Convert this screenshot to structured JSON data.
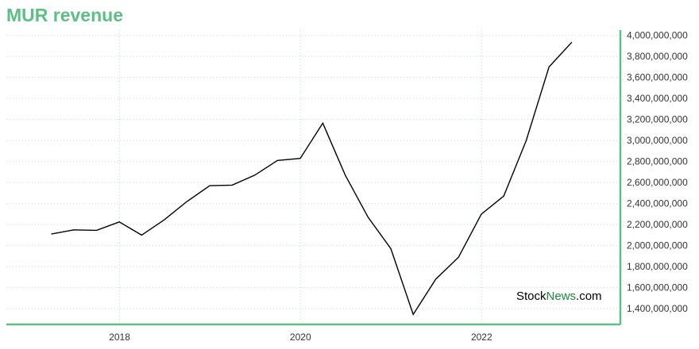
{
  "title": "MUR revenue",
  "watermark": {
    "part1": "Stock",
    "part2": "News",
    "part3": ".com"
  },
  "colors": {
    "accent": "#5cbf85",
    "line": "#000000"
  },
  "chart_data": {
    "type": "line",
    "title": "MUR revenue",
    "xlabel": "",
    "ylabel": "",
    "x_ticks": [
      "2018",
      "2020",
      "2022"
    ],
    "y_ticks": [
      1400000000,
      1600000000,
      1800000000,
      2000000000,
      2200000000,
      2400000000,
      2600000000,
      2800000000,
      3000000000,
      3200000000,
      3400000000,
      3600000000,
      3800000000,
      4000000000
    ],
    "y_tick_labels": [
      "1,400,000,000",
      "1,600,000,000",
      "1,800,000,000",
      "2,000,000,000",
      "2,200,000,000",
      "2,400,000,000",
      "2,600,000,000",
      "2,800,000,000",
      "3,000,000,000",
      "3,200,000,000",
      "3,400,000,000",
      "3,600,000,000",
      "3,800,000,000",
      "4,000,000,000"
    ],
    "ylim": [
      1250000000,
      4050000000
    ],
    "xlim": [
      "2016-10-01",
      "2023-07-15"
    ],
    "grid": true,
    "legend": "none",
    "series": [
      {
        "x": [
          "2017-03-31",
          "2017-06-30",
          "2017-09-30",
          "2017-12-31",
          "2018-03-31",
          "2018-06-30",
          "2018-09-30",
          "2018-12-31",
          "2019-03-31",
          "2019-06-30",
          "2019-09-30",
          "2019-12-31",
          "2020-03-31",
          "2020-06-30",
          "2020-09-30",
          "2020-12-31",
          "2021-03-31",
          "2021-06-30",
          "2021-09-30",
          "2021-12-31",
          "2022-03-31",
          "2022-06-30",
          "2022-09-30",
          "2022-12-31"
        ],
        "values": [
          2110000000,
          2150000000,
          2145000000,
          2225000000,
          2100000000,
          2245000000,
          2420000000,
          2570000000,
          2575000000,
          2670000000,
          2810000000,
          2830000000,
          3165000000,
          2670000000,
          2270000000,
          1970000000,
          1345000000,
          1680000000,
          1890000000,
          2300000000,
          2470000000,
          3000000000,
          3700000000,
          3935000000
        ]
      }
    ]
  }
}
